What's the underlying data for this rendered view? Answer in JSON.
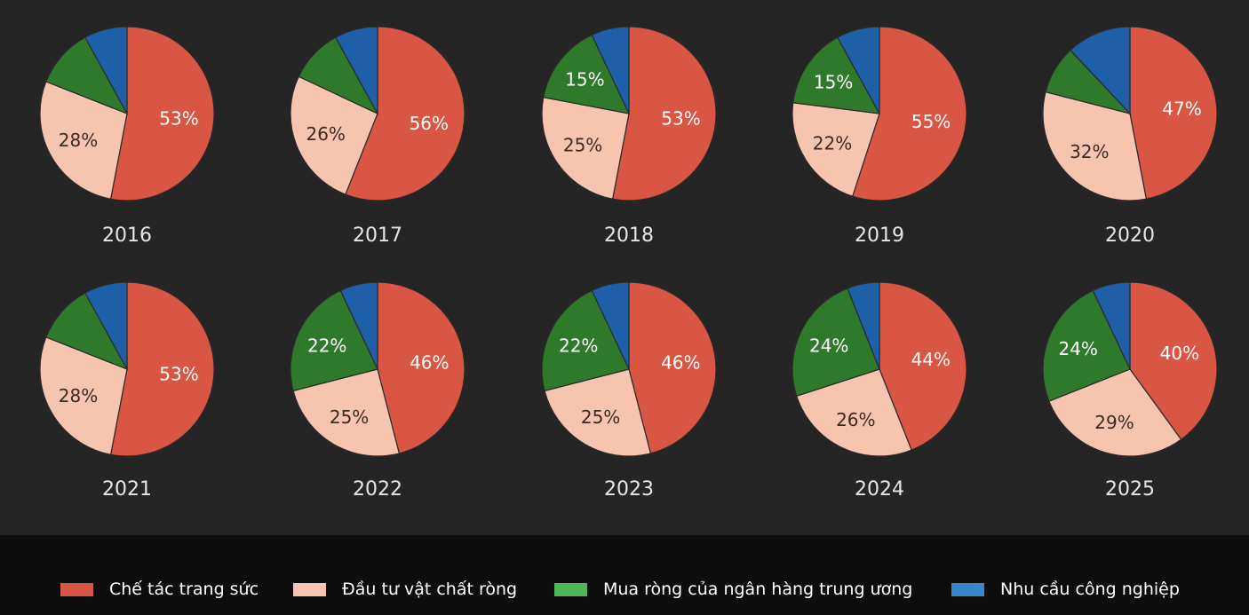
{
  "chart_data": {
    "type": "pie",
    "series": [
      {
        "name": "Chế tác trang sức",
        "color": "#d95645"
      },
      {
        "name": "Đầu tư vật chất ròng",
        "color": "#f7c4b0"
      },
      {
        "name": "Mua ròng của ngân hàng trung ương",
        "color": "#2f7a2a"
      },
      {
        "name": "Nhu cầu công nghiệp",
        "color": "#1f5fa8"
      }
    ],
    "pies": [
      {
        "year": "2016",
        "values": [
          53,
          28,
          11,
          8
        ],
        "labels": [
          "53%",
          "28%",
          "",
          ""
        ]
      },
      {
        "year": "2017",
        "values": [
          56,
          26,
          10,
          8
        ],
        "labels": [
          "56%",
          "26%",
          "",
          ""
        ]
      },
      {
        "year": "2018",
        "values": [
          53,
          25,
          15,
          7
        ],
        "labels": [
          "53%",
          "25%",
          "15%",
          ""
        ]
      },
      {
        "year": "2019",
        "values": [
          55,
          22,
          15,
          8
        ],
        "labels": [
          "55%",
          "22%",
          "15%",
          ""
        ]
      },
      {
        "year": "2020",
        "values": [
          47,
          32,
          9,
          12
        ],
        "labels": [
          "47%",
          "32%",
          "",
          ""
        ]
      },
      {
        "year": "2021",
        "values": [
          53,
          28,
          11,
          8
        ],
        "labels": [
          "53%",
          "28%",
          "",
          ""
        ]
      },
      {
        "year": "2022",
        "values": [
          46,
          25,
          22,
          7
        ],
        "labels": [
          "46%",
          "25%",
          "22%",
          ""
        ]
      },
      {
        "year": "2023",
        "values": [
          46,
          25,
          22,
          7
        ],
        "labels": [
          "46%",
          "25%",
          "22%",
          ""
        ]
      },
      {
        "year": "2024",
        "values": [
          44,
          26,
          24,
          6
        ],
        "labels": [
          "44%",
          "26%",
          "24%",
          ""
        ]
      },
      {
        "year": "2025",
        "values": [
          40,
          29,
          24,
          7
        ],
        "labels": [
          "40%",
          "29%",
          "24%",
          ""
        ]
      }
    ],
    "legend_position": "bottom"
  },
  "legend": {
    "items": [
      {
        "label": "Chế tác trang sức",
        "color": "#d95645"
      },
      {
        "label": "Đầu tư vật chất ròng",
        "color": "#f7c4b0"
      },
      {
        "label": "Mua ròng của ngân hàng trung ương",
        "color": "#4cb85a"
      },
      {
        "label": "Nhu cầu công nghiệp",
        "color": "#3a86cc"
      }
    ]
  }
}
